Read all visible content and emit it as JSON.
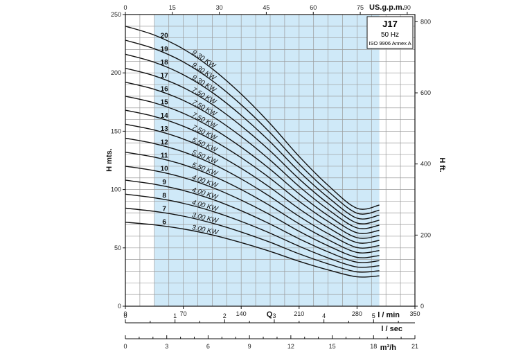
{
  "chart_data": {
    "type": "line",
    "title": "J17",
    "subtitle": "50 Hz",
    "standard": "ISO 9906 Annex A",
    "ylabel_left": "H mts.",
    "ylabel_right": "H ft.",
    "xlabel": "Q",
    "x_unit_lmin": "l / min",
    "x_unit_lsec": "l / sec",
    "x_unit_m3h": "m³/h",
    "x_unit_gpm": "US.g.p.m.",
    "xlim": [
      0,
      350
    ],
    "ylim": [
      0,
      250
    ],
    "xticks_lmin": [
      "0",
      "70",
      "140",
      "210",
      "280",
      "350"
    ],
    "yticks_left": [
      "0",
      "50",
      "100",
      "150",
      "200",
      "250"
    ],
    "yticks_right": [
      "0",
      "200",
      "400",
      "600",
      "800"
    ],
    "xticks_gpm": [
      "0",
      "15",
      "30",
      "45",
      "60",
      "75",
      "90"
    ],
    "xticks_lsec": [
      "0",
      "1",
      "2",
      "3",
      "4",
      "5"
    ],
    "xticks_m3h": [
      "0",
      "3",
      "6",
      "9",
      "12",
      "15",
      "18",
      "21"
    ],
    "operating_range": [
      35,
      307
    ],
    "grid": true,
    "x": [
      0,
      35,
      70,
      105,
      140,
      175,
      210,
      245,
      280,
      307
    ],
    "series": [
      {
        "name": "20",
        "power": "9.30 KW",
        "values": [
          240,
          232.4,
          220.5,
          203.5,
          181.8,
          156.5,
          128.4,
          103.6,
          83.9,
          86.7
        ]
      },
      {
        "name": "19",
        "power": "9.30 KW",
        "values": [
          228,
          220.7,
          209.4,
          193.3,
          172.7,
          148.7,
          121.9,
          98.5,
          79.7,
          82.3
        ]
      },
      {
        "name": "18",
        "power": "9.30 KW",
        "values": [
          216,
          209.1,
          198.4,
          183.2,
          163.6,
          140.9,
          115.5,
          93.3,
          75.5,
          78
        ]
      },
      {
        "name": "17",
        "power": "7.50 KW",
        "values": [
          204,
          197.5,
          187.4,
          173,
          154.5,
          133.1,
          109.1,
          88.1,
          71.3,
          73.7
        ]
      },
      {
        "name": "16",
        "power": "7.50 KW",
        "values": [
          192,
          185.9,
          176.4,
          162.8,
          145.4,
          125.2,
          102.7,
          82.9,
          67.1,
          69.4
        ]
      },
      {
        "name": "15",
        "power": "7.50 KW",
        "values": [
          180,
          174.3,
          165.4,
          152.6,
          136.3,
          117.4,
          96.3,
          77.7,
          62.9,
          65
        ]
      },
      {
        "name": "14",
        "power": "7.50 KW",
        "values": [
          168,
          162.6,
          154.3,
          142.5,
          127.3,
          109.6,
          89.9,
          72.6,
          58.7,
          60.7
        ]
      },
      {
        "name": "13",
        "power": "5.50 KW",
        "values": [
          156,
          151,
          143.3,
          132.3,
          118.2,
          101.7,
          83.5,
          67.4,
          54.5,
          56.4
        ]
      },
      {
        "name": "12",
        "power": "5.50 KW",
        "values": [
          144,
          139.4,
          132.3,
          122.1,
          109.1,
          93.9,
          77,
          62.2,
          50.3,
          52
        ]
      },
      {
        "name": "11",
        "power": "5.50 KW",
        "values": [
          132,
          127.8,
          121.3,
          111.9,
          100,
          86.1,
          70.6,
          57,
          46.1,
          47.7
        ]
      },
      {
        "name": "10",
        "power": "4.00 KW",
        "values": [
          120,
          116.2,
          110.3,
          101.8,
          90.9,
          78.3,
          64.2,
          51.8,
          41.9,
          43.4
        ]
      },
      {
        "name": "9",
        "power": "4.00 KW",
        "values": [
          108,
          104.6,
          99.2,
          91.6,
          81.8,
          70.4,
          57.8,
          46.6,
          37.7,
          39
        ]
      },
      {
        "name": "8",
        "power": "4.00 KW",
        "values": [
          96,
          92.9,
          88.2,
          81.4,
          72.7,
          62.6,
          51.4,
          41.4,
          33.6,
          34.7
        ]
      },
      {
        "name": "7",
        "power": "3.00 KW",
        "values": [
          84,
          81.3,
          77.2,
          71.2,
          63.6,
          54.8,
          44.9,
          36.3,
          29.4,
          30.4
        ]
      },
      {
        "name": "6",
        "power": "3.00 KW",
        "values": [
          72,
          69.7,
          66.2,
          61.1,
          54.5,
          47,
          38.5,
          31.1,
          25.2,
          26
        ]
      }
    ]
  }
}
